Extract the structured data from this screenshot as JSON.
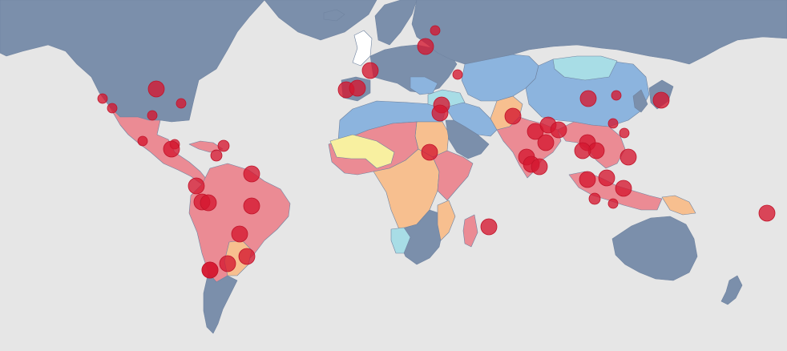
{
  "colors": {
    "ocean": "#e6e6e6",
    "dark_blue": "#7b8fab",
    "blue": "#8cb4de",
    "light_cyan": "#a8dde6",
    "yellow": "#f8f0a0",
    "orange": "#f7bf8f",
    "red": "#eb8b94",
    "white": "#ffffff",
    "marker": "#d5172f"
  },
  "regions": [
    {
      "id": "greenland",
      "name": "greenland",
      "class": "dark_blue"
    },
    {
      "id": "north-america",
      "name": "north-america",
      "class": "dark_blue"
    },
    {
      "id": "mexico-central-america",
      "name": "mexico-central-america",
      "class": "red"
    },
    {
      "id": "caribbean",
      "name": "caribbean",
      "class": "red"
    },
    {
      "id": "south-america",
      "name": "south-america",
      "class": "red"
    },
    {
      "id": "southern-cone",
      "name": "southern-cone",
      "class": "dark_blue"
    },
    {
      "id": "paraguay-uruguay",
      "name": "paraguay-uruguay",
      "class": "orange"
    },
    {
      "id": "iceland",
      "name": "iceland",
      "class": "dark_blue"
    },
    {
      "id": "uk",
      "name": "uk",
      "class": "white"
    },
    {
      "id": "scandinavia",
      "name": "scandinavia",
      "class": "dark_blue"
    },
    {
      "id": "europe",
      "name": "europe",
      "class": "dark_blue"
    },
    {
      "id": "iberia",
      "name": "iberia",
      "class": "dark_blue"
    },
    {
      "id": "balkans",
      "name": "balkans",
      "class": "blue"
    },
    {
      "id": "russia",
      "name": "russia",
      "class": "dark_blue"
    },
    {
      "id": "north-africa",
      "name": "north-africa",
      "class": "blue"
    },
    {
      "id": "sudan",
      "name": "sudan",
      "class": "orange"
    },
    {
      "id": "west-africa",
      "name": "west-africa",
      "class": "red"
    },
    {
      "id": "sahel",
      "name": "sahel",
      "class": "yellow"
    },
    {
      "id": "central-africa",
      "name": "central-africa",
      "class": "orange"
    },
    {
      "id": "east-africa",
      "name": "east-africa",
      "class": "red"
    },
    {
      "id": "southern-africa",
      "name": "southern-africa",
      "class": "dark_blue"
    },
    {
      "id": "namibia",
      "name": "namibia",
      "class": "light_cyan"
    },
    {
      "id": "mozambique",
      "name": "mozambique",
      "class": "orange"
    },
    {
      "id": "madagascar",
      "name": "madagascar",
      "class": "red"
    },
    {
      "id": "turkey",
      "name": "turkey",
      "class": "light_cyan"
    },
    {
      "id": "middle-east",
      "name": "middle-east",
      "class": "blue"
    },
    {
      "id": "arabia",
      "name": "arabia",
      "class": "dark_blue"
    },
    {
      "id": "central-asia",
      "name": "central-asia",
      "class": "blue"
    },
    {
      "id": "pakistan",
      "name": "pakistan",
      "class": "orange"
    },
    {
      "id": "india",
      "name": "india",
      "class": "red"
    },
    {
      "id": "china",
      "name": "china",
      "class": "blue"
    },
    {
      "id": "mongolia",
      "name": "mongolia",
      "class": "light_cyan"
    },
    {
      "id": "japan-korea",
      "name": "japan-korea",
      "class": "dark_blue"
    },
    {
      "id": "southeast-asia",
      "name": "southeast-asia",
      "class": "red"
    },
    {
      "id": "indonesia",
      "name": "indonesia",
      "class": "red"
    },
    {
      "id": "papua",
      "name": "papua",
      "class": "orange"
    },
    {
      "id": "australia",
      "name": "australia",
      "class": "dark_blue"
    },
    {
      "id": "new-zealand",
      "name": "new-zealand",
      "class": "dark_blue"
    }
  ],
  "markers": [
    {
      "name": "city-marker-vancouver",
      "r": 6
    },
    {
      "name": "city-marker-san-francisco",
      "r": 6
    },
    {
      "name": "city-marker-chicago",
      "r": 10
    },
    {
      "name": "city-marker-new-york",
      "r": 6
    },
    {
      "name": "city-marker-atlanta",
      "r": 6
    },
    {
      "name": "city-marker-mexico-city",
      "r": 6
    },
    {
      "name": "city-marker-havana",
      "r": 6
    },
    {
      "name": "city-marker-santo-domingo",
      "r": 7
    },
    {
      "name": "city-marker-guatemala",
      "r": 10
    },
    {
      "name": "city-marker-nicaragua",
      "r": 7
    },
    {
      "name": "city-marker-venezuela",
      "r": 10
    },
    {
      "name": "city-marker-colombia",
      "r": 10
    },
    {
      "name": "city-marker-ecuador",
      "r": 10
    },
    {
      "name": "city-marker-peru",
      "r": 10
    },
    {
      "name": "city-marker-brazil",
      "r": 10
    },
    {
      "name": "city-marker-bolivia",
      "r": 10
    },
    {
      "name": "city-marker-paraguay",
      "r": 10
    },
    {
      "name": "city-marker-sao-paulo",
      "r": 10
    },
    {
      "name": "city-marker-buenos-aires",
      "r": 10
    },
    {
      "name": "city-marker-santiago",
      "r": 10
    },
    {
      "name": "city-marker-london",
      "r": 10
    },
    {
      "name": "city-marker-lisbon",
      "r": 10
    },
    {
      "name": "city-marker-madrid",
      "r": 10
    },
    {
      "name": "city-marker-stockholm",
      "r": 6
    },
    {
      "name": "city-marker-moscow",
      "r": 10
    },
    {
      "name": "city-marker-kazan",
      "r": 6
    },
    {
      "name": "city-marker-istanbul",
      "r": 10
    },
    {
      "name": "city-marker-cairo",
      "r": 10
    },
    {
      "name": "city-marker-khartoum",
      "r": 10
    },
    {
      "name": "city-marker-mauritius",
      "r": 10
    },
    {
      "name": "city-marker-delhi",
      "r": 10
    },
    {
      "name": "city-marker-lahore",
      "r": 10
    },
    {
      "name": "city-marker-lucknow",
      "r": 10
    },
    {
      "name": "city-marker-patna",
      "r": 10
    },
    {
      "name": "city-marker-mumbai",
      "r": 10
    },
    {
      "name": "city-marker-pune",
      "r": 10
    },
    {
      "name": "city-marker-hyderabad",
      "r": 10
    },
    {
      "name": "city-marker-chennai",
      "r": 10
    },
    {
      "name": "city-marker-kolkata",
      "r": 10
    },
    {
      "name": "city-marker-dhaka",
      "r": 10
    },
    {
      "name": "city-marker-bangkok",
      "r": 10
    },
    {
      "name": "city-marker-hanoi",
      "r": 10
    },
    {
      "name": "city-marker-manila",
      "r": 10
    },
    {
      "name": "city-marker-jakarta",
      "r": 10
    },
    {
      "name": "city-marker-shanghai",
      "r": 10
    },
    {
      "name": "city-marker-tokyo",
      "r": 10
    },
    {
      "name": "city-marker-seoul",
      "r": 6
    },
    {
      "name": "city-marker-taipei",
      "r": 6
    },
    {
      "name": "city-marker-guangzhou",
      "r": 6
    },
    {
      "name": "city-marker-kuala-lumpur",
      "r": 10
    },
    {
      "name": "city-marker-singapore",
      "r": 7
    },
    {
      "name": "city-marker-surabaya",
      "r": 6
    },
    {
      "name": "city-marker-hawaii",
      "r": 10
    }
  ]
}
